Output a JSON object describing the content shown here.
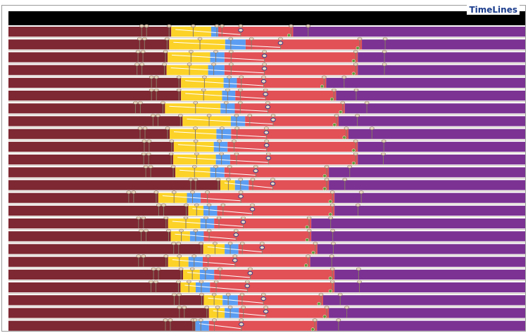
{
  "panel": {
    "title": "TimeLines"
  },
  "colors": {
    "background": "#ffffff",
    "panel_border": "#9a9a9a",
    "title": "#1a3c8c",
    "header_band": "#000000",
    "row_separator": "#c7bfb3",
    "phase_before": "#7d2832",
    "phase_yellow": "#fcd228",
    "phase_blue": "#5b9df2",
    "phase_red": "#e15156",
    "phase_purple": "#7b3293",
    "event_pin": "#ead9c2",
    "event_pin_stroke": "#8a7a66",
    "event_ring": "#3a3a8a",
    "event_green": "#5a9a3a",
    "connector": "#ffffff"
  },
  "timeline_rows": [
    {
      "p1": 0.315,
      "p2": 0.406,
      "p3": 0.406,
      "p4": 0.551
    },
    {
      "p1": 0.311,
      "p2": 0.433,
      "p3": 0.459,
      "p4": 0.684
    },
    {
      "p1": 0.308,
      "p2": 0.404,
      "p3": 0.418,
      "p4": 0.676
    },
    {
      "p1": 0.306,
      "p2": 0.4,
      "p3": 0.418,
      "p4": 0.676
    },
    {
      "p1": 0.334,
      "p2": 0.43,
      "p3": 0.442,
      "p4": 0.615
    },
    {
      "p1": 0.334,
      "p2": 0.427,
      "p3": 0.439,
      "p4": 0.634
    },
    {
      "p1": 0.303,
      "p2": 0.424,
      "p3": 0.438,
      "p4": 0.651
    },
    {
      "p1": 0.337,
      "p2": 0.444,
      "p3": 0.458,
      "p4": 0.639
    },
    {
      "p1": 0.312,
      "p2": 0.416,
      "p3": 0.431,
      "p4": 0.658
    },
    {
      "p1": 0.32,
      "p2": 0.411,
      "p3": 0.424,
      "p4": 0.676
    },
    {
      "p1": 0.319,
      "p2": 0.415,
      "p3": 0.429,
      "p4": 0.676
    },
    {
      "p1": 0.323,
      "p2": 0.404,
      "p3": 0.418,
      "p4": 0.62
    },
    {
      "p1": 0.41,
      "p2": 0.452,
      "p3": 0.465,
      "p4": 0.62
    },
    {
      "p1": 0.29,
      "p2": 0.359,
      "p3": 0.372,
      "p4": 0.631
    },
    {
      "p1": 0.348,
      "p2": 0.391,
      "p3": 0.404,
      "p4": 0.631
    },
    {
      "p1": 0.309,
      "p2": 0.385,
      "p3": 0.398,
      "p4": 0.586
    },
    {
      "p1": 0.314,
      "p2": 0.365,
      "p3": 0.378,
      "p4": 0.586
    },
    {
      "p1": 0.377,
      "p2": 0.432,
      "p3": 0.445,
      "p4": 0.598
    },
    {
      "p1": 0.309,
      "p2": 0.362,
      "p3": 0.376,
      "p4": 0.584
    },
    {
      "p1": 0.338,
      "p2": 0.384,
      "p3": 0.398,
      "p4": 0.631
    },
    {
      "p1": 0.333,
      "p2": 0.376,
      "p3": 0.39,
      "p4": 0.631
    },
    {
      "p1": 0.378,
      "p2": 0.428,
      "p3": 0.444,
      "p4": 0.609
    },
    {
      "p1": 0.388,
      "p2": 0.432,
      "p3": 0.446,
      "p4": 0.62
    },
    {
      "p1": 0.361,
      "p2": 0.375,
      "p3": 0.388,
      "p4": 0.597
    }
  ]
}
